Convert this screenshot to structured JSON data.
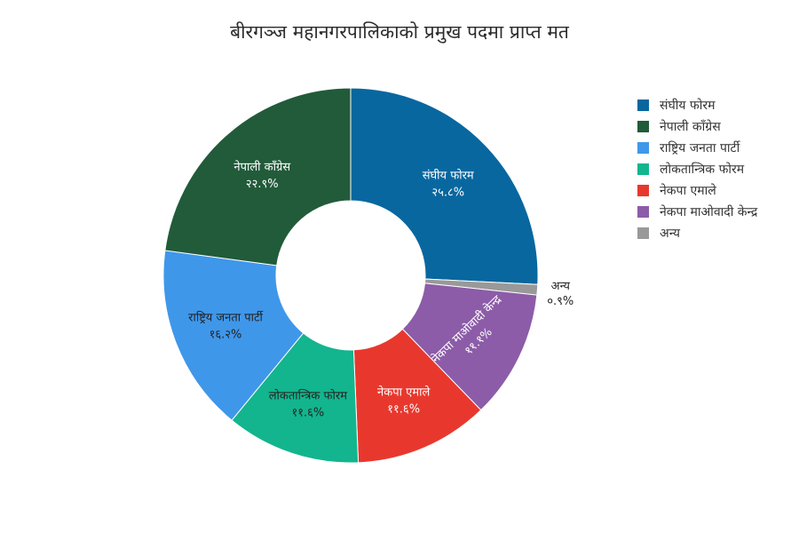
{
  "chart_data": {
    "type": "pie",
    "title": "बीरगञ्ज महानगरपालिकाको प्रमुख पदमा प्राप्त मत",
    "legend_position": "right",
    "hole": "donut",
    "slices": [
      {
        "name": "संघीय फोरम",
        "value": 25.8,
        "label": "२५.८%",
        "color": "#08679f",
        "text_color": "#ffffff"
      },
      {
        "name": "अन्य",
        "value": 0.9,
        "label": "०.९%",
        "color": "#999999",
        "text_color": "#222222"
      },
      {
        "name": "नेकपा माओवादी केन्द्र",
        "value": 11.1,
        "label": "११.१%",
        "color": "#8c5ca8",
        "text_color": "#ffffff"
      },
      {
        "name": "नेकपा एमाले",
        "value": 11.6,
        "label": "११.६%",
        "color": "#e8382e",
        "text_color": "#ffffff"
      },
      {
        "name": "लोकतान्त्रिक फोरम",
        "value": 11.6,
        "label": "११.६%",
        "color": "#13b58e",
        "text_color": "#222222"
      },
      {
        "name": "राष्ट्रिय जनता पार्टी",
        "value": 16.2,
        "label": "१६.२%",
        "color": "#3f97ea",
        "text_color": "#222222"
      },
      {
        "name": "नेपाली काँग्रेस",
        "value": 22.9,
        "label": "२२.९%",
        "color": "#215b3a",
        "text_color": "#ffffff"
      }
    ],
    "legend": [
      {
        "name": "संघीय फोरम",
        "color": "#08679f"
      },
      {
        "name": "नेपाली काँग्रेस",
        "color": "#215b3a"
      },
      {
        "name": "राष्ट्रिय जनता पार्टी",
        "color": "#3f97ea"
      },
      {
        "name": "लोकतान्त्रिक फोरम",
        "color": "#13b58e"
      },
      {
        "name": "नेकपा एमाले",
        "color": "#e8382e"
      },
      {
        "name": "नेकपा माओवादी केन्द्र",
        "color": "#8c5ca8"
      },
      {
        "name": "अन्य",
        "color": "#999999"
      }
    ]
  }
}
